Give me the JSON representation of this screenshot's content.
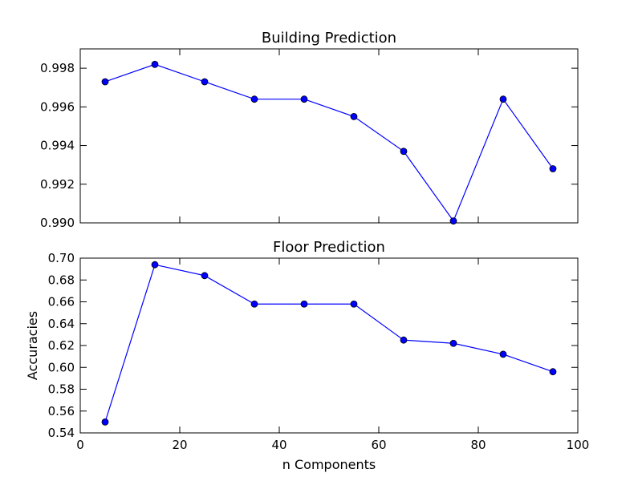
{
  "figure": {
    "xlabel": "n Components",
    "ylabel": "Accuracies"
  },
  "chart_data": [
    {
      "type": "line",
      "title": "Building Prediction",
      "xlabel": "",
      "ylabel": "",
      "xlim": [
        0,
        100
      ],
      "ylim": [
        0.99,
        0.999
      ],
      "x_ticks": [
        0,
        20,
        40,
        60,
        80,
        100
      ],
      "x_ticklabels_visible": false,
      "y_ticks": [
        0.99,
        0.992,
        0.994,
        0.996,
        0.998
      ],
      "y_ticklabels": [
        "0.990",
        "0.992",
        "0.994",
        "0.996",
        "0.998"
      ],
      "grid": false,
      "legend": "none",
      "series": [
        {
          "color": "#0000ff",
          "marker": "circle",
          "x": [
            5,
            15,
            25,
            35,
            45,
            55,
            65,
            75,
            85,
            95
          ],
          "y": [
            0.9973,
            0.9982,
            0.9973,
            0.9964,
            0.9964,
            0.9955,
            0.9937,
            0.9901,
            0.9964,
            0.9928
          ]
        }
      ]
    },
    {
      "type": "line",
      "title": "Floor Prediction",
      "xlabel": "n Components",
      "ylabel": "Accuracies",
      "xlim": [
        0,
        100
      ],
      "ylim": [
        0.54,
        0.7
      ],
      "x_ticks": [
        0,
        20,
        40,
        60,
        80,
        100
      ],
      "x_ticklabels": [
        "0",
        "20",
        "40",
        "60",
        "80",
        "100"
      ],
      "x_ticklabels_visible": true,
      "y_ticks": [
        0.54,
        0.56,
        0.58,
        0.6,
        0.62,
        0.64,
        0.66,
        0.68,
        0.7
      ],
      "y_ticklabels": [
        "0.54",
        "0.56",
        "0.58",
        "0.60",
        "0.62",
        "0.64",
        "0.66",
        "0.68",
        "0.70"
      ],
      "grid": false,
      "legend": "none",
      "series": [
        {
          "color": "#0000ff",
          "marker": "circle",
          "x": [
            5,
            15,
            25,
            35,
            45,
            55,
            65,
            75,
            85,
            95
          ],
          "y": [
            0.55,
            0.694,
            0.684,
            0.658,
            0.658,
            0.658,
            0.625,
            0.622,
            0.612,
            0.596
          ]
        }
      ]
    }
  ]
}
